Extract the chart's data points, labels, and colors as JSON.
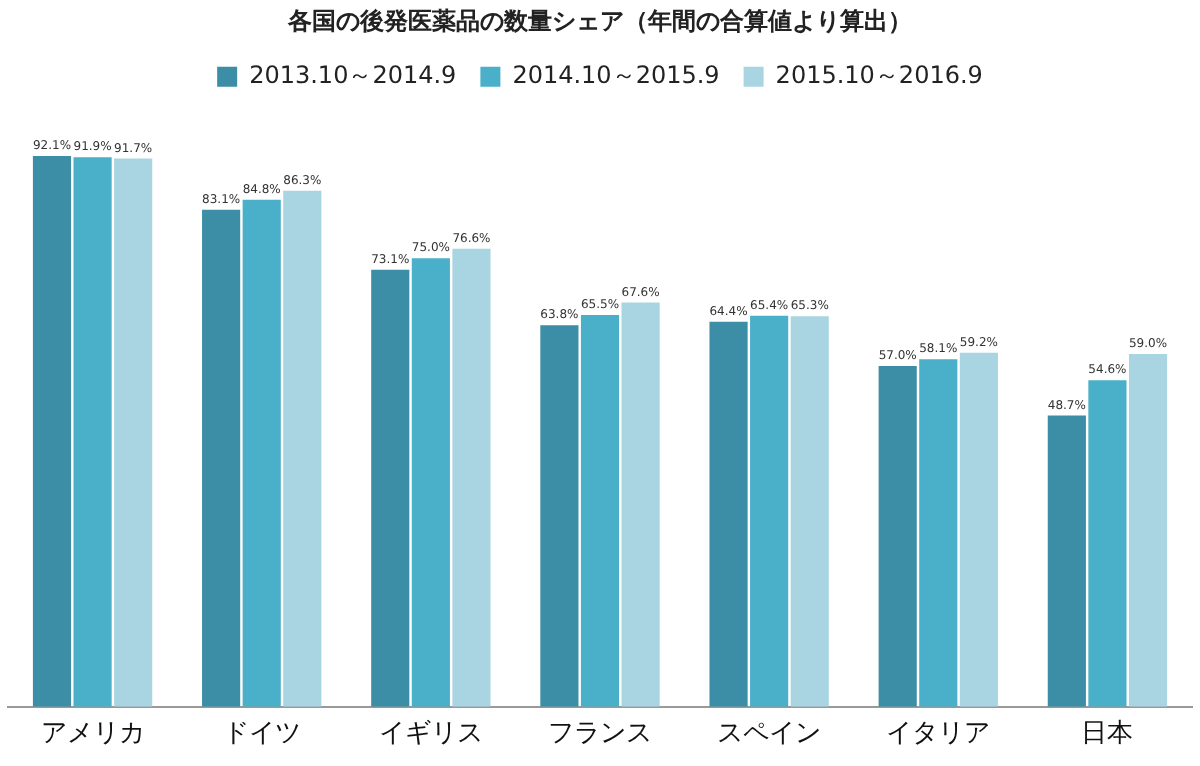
{
  "chart_data": {
    "type": "bar",
    "title": "各国の後発医薬品の数量シェア（年間の合算値より算出）",
    "categories": [
      "アメリカ",
      "ドイツ",
      "イギリス",
      "フランス",
      "スペイン",
      "イタリア",
      "日本"
    ],
    "series": [
      {
        "name": "2013.10～2014.9",
        "color": "#3b8ea5",
        "values": [
          92.1,
          83.1,
          73.1,
          63.8,
          64.4,
          57.0,
          48.7
        ],
        "value_labels": [
          "92.1%",
          "83.1%",
          "73.1%",
          "63.8%",
          "64.4%",
          "57.0%",
          "48.7%"
        ]
      },
      {
        "name": "2014.10～2015.9",
        "color": "#4aafc8",
        "values": [
          91.9,
          84.8,
          75.0,
          65.5,
          65.4,
          58.1,
          54.6
        ],
        "value_labels": [
          "91.9%",
          "84.8%",
          "75.0%",
          "65.5%",
          "65.4%",
          "58.1%",
          "54.6%"
        ]
      },
      {
        "name": "2015.10～2016.9",
        "color": "#a9d4e1",
        "values": [
          91.7,
          86.3,
          76.6,
          67.6,
          65.3,
          59.2,
          59.0
        ],
        "value_labels": [
          "91.7%",
          "86.3%",
          "76.6%",
          "67.6%",
          "65.3%",
          "59.2%",
          "59.0%"
        ]
      }
    ],
    "tick_labels": "x",
    "grid": false,
    "legend": "top"
  }
}
